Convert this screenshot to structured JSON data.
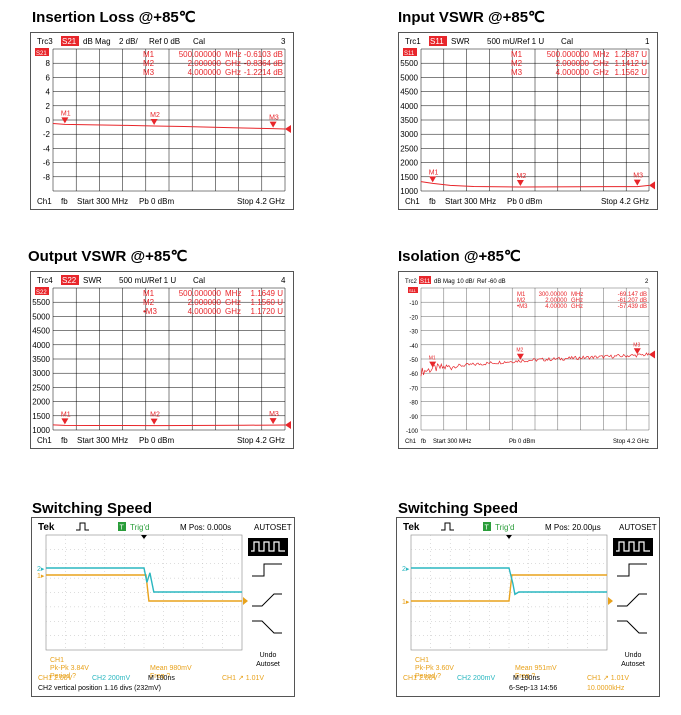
{
  "titles": {
    "il": "Insertion Loss @+85℃",
    "in_vswr": "Input VSWR @+85℃",
    "out_vswr": "Output VSWR @+85℃",
    "iso": "Isolation @+85℃",
    "sw1": "Switching Speed",
    "sw2": "Switching Speed"
  },
  "colors": {
    "trace": "#e8262b",
    "header_red": "#e8262b",
    "ch1": "#e8a21c",
    "ch2": "#2ab7c0",
    "grid": "#000000"
  },
  "chart_data": [
    {
      "type": "line",
      "header": {
        "trc": "Trc3",
        "param": "S21",
        "fmt": "dB Mag",
        "scale": "2 dB/",
        "ref": "Ref 0 dB",
        "cal": "Cal",
        "num": "3"
      },
      "markers": [
        {
          "label": "M1",
          "freq": "500.000000",
          "unit": "MHz",
          "value": "-0.6103 dB"
        },
        {
          "label": "M2",
          "freq": "2.000000",
          "unit": "GHz",
          "value": "-0.8364 dB"
        },
        {
          "label": "M3",
          "freq": "4.000000",
          "unit": "GHz",
          "value": "-1.2214 dB"
        }
      ],
      "ylim": [
        -10,
        10
      ],
      "ytick_labels": [
        "8",
        "6",
        "4",
        "2",
        "0",
        "-2",
        "-4",
        "-6",
        "-8"
      ],
      "ref_level": "S21",
      "x": [
        0.3,
        0.5,
        1.0,
        1.5,
        2.0,
        2.5,
        3.0,
        3.5,
        4.0,
        4.2
      ],
      "y": [
        -0.5,
        -0.61,
        -0.68,
        -0.75,
        -0.84,
        -0.92,
        -1.02,
        -1.12,
        -1.22,
        -1.26
      ],
      "footer": {
        "ch": "Ch1",
        "fb": "fb",
        "start": "Start  300 MHz",
        "pb": "Pb    0 dBm",
        "stop": "Stop  4.2 GHz"
      }
    },
    {
      "type": "line",
      "header": {
        "trc": "Trc1",
        "param": "S11",
        "fmt": "SWR",
        "scale": "500 mU/",
        "ref": "Ref 1 U",
        "cal": "Cal",
        "num": "1"
      },
      "markers": [
        {
          "label": "M1",
          "freq": "500.000000",
          "unit": "MHz",
          "value": "1.2687 U"
        },
        {
          "label": "M2",
          "freq": "2.000000",
          "unit": "GHz",
          "value": "1.1412 U"
        },
        {
          "label": "M3",
          "freq": "4.000000",
          "unit": "GHz",
          "value": "1.1562 U"
        }
      ],
      "ylim": [
        1000,
        6000
      ],
      "ytick_labels": [
        "5500",
        "5000",
        "4500",
        "4000",
        "3500",
        "3000",
        "2500",
        "2000",
        "1500",
        "1000"
      ],
      "ref_level": "S11",
      "x": [
        0.3,
        0.4,
        0.5,
        0.8,
        1.2,
        1.6,
        2.0,
        2.5,
        3.0,
        3.5,
        4.0,
        4.2
      ],
      "y": [
        1330,
        1300,
        1269,
        1200,
        1160,
        1150,
        1141,
        1145,
        1150,
        1152,
        1156,
        1200
      ],
      "footer": {
        "ch": "Ch1",
        "fb": "fb",
        "start": "Start  300 MHz",
        "pb": "Pb    0 dBm",
        "stop": "Stop  4.2 GHz"
      }
    },
    {
      "type": "line",
      "header": {
        "trc": "Trc4",
        "param": "S22",
        "fmt": "SWR",
        "scale": "500 mU/",
        "ref": "Ref 1 U",
        "cal": "Cal",
        "num": "4"
      },
      "markers": [
        {
          "label": "M1",
          "freq": "500.000000",
          "unit": "MHz",
          "value": "1.1649 U"
        },
        {
          "label": "M2",
          "freq": "2.000000",
          "unit": "GHz",
          "value": "1.1560 U"
        },
        {
          "label": "•M3",
          "freq": "4.000000",
          "unit": "GHz",
          "value": "1.1720 U"
        }
      ],
      "ylim": [
        1000,
        6000
      ],
      "ytick_labels": [
        "5500",
        "5000",
        "4500",
        "4000",
        "3500",
        "3000",
        "2500",
        "2000",
        "1500",
        "1000"
      ],
      "ref_level": "S22",
      "x": [
        0.3,
        0.5,
        1.0,
        1.5,
        2.0,
        2.5,
        3.0,
        3.5,
        4.0,
        4.2
      ],
      "y": [
        1180,
        1165,
        1160,
        1158,
        1156,
        1160,
        1165,
        1168,
        1172,
        1175
      ],
      "footer": {
        "ch": "Ch1",
        "fb": "fb",
        "start": "Start  300 MHz",
        "pb": "Pb    0 dBm",
        "stop": "Stop  4.2 GHz"
      }
    },
    {
      "type": "line",
      "header": {
        "trc": "Trc2",
        "param": "S11",
        "fmt": "dB Mag",
        "scale": "10 dB/",
        "ref": "Ref -60 dB",
        "cal": "",
        "num": "2"
      },
      "markers": [
        {
          "label": "M1",
          "freq": "300.00000",
          "unit": "MHz",
          "value": "-69.147  dB"
        },
        {
          "label": "M2",
          "freq": "2.00000",
          "unit": "GHz",
          "value": "-61.207  dB"
        },
        {
          "label": "•M3",
          "freq": "4.00000",
          "unit": "GHz",
          "value": "-57.439  dB"
        }
      ],
      "ylim": [
        -110,
        -10
      ],
      "ytick_labels": [
        "-10",
        "-20",
        "-30",
        "-40",
        "-50",
        "-60",
        "-70",
        "-80",
        "-90",
        "-100"
      ],
      "ref_level": "S11",
      "x": [
        0.3,
        0.5,
        1.0,
        1.5,
        2.0,
        2.5,
        3.0,
        3.5,
        4.0,
        4.2
      ],
      "y": [
        -69.1,
        -66.8,
        -64.6,
        -62.8,
        -61.2,
        -60.2,
        -59.2,
        -58.3,
        -57.4,
        -56.8
      ],
      "footer": {
        "ch": "Ch1",
        "fb": "fb",
        "start": "Start  300 MHz",
        "pb": "Pb    0 dBm",
        "stop": "Stop  4.2 GHz"
      }
    },
    {
      "type": "line",
      "scope": true,
      "brand": "Tek",
      "trig": "Trig'd",
      "mpos": "M Pos: 0.000s",
      "autoset": "AUTOSET",
      "ch1_marker": "1",
      "ch2_marker": "2",
      "readout": {
        "ch1": "CH1",
        "pk": "Pk-Pk 3.84V",
        "period": "Period ?",
        "mean": "Mean 980mV",
        "freq": "Freq ?",
        "undo": "Undo",
        "undo2": "Autoset"
      },
      "footer": {
        "ch1": "CH1  2.00V",
        "ch2": "CH2  200mV",
        "time": "M 100ns",
        "trig": "CH1  ↗  1.01V"
      },
      "note": "CH2 vertical position 1.16 divs (232mV)",
      "ch1_steps": [
        [
          0,
          1
        ],
        [
          5.1,
          1
        ],
        [
          5.25,
          -1
        ],
        [
          10,
          -1
        ]
      ],
      "ch2_steps": [
        [
          0,
          1
        ],
        [
          5.0,
          1
        ],
        [
          5.15,
          -0.2
        ],
        [
          5.3,
          0.6
        ],
        [
          5.5,
          -1
        ],
        [
          10,
          -1
        ]
      ]
    },
    {
      "type": "line",
      "scope": true,
      "brand": "Tek",
      "trig": "Trig'd",
      "mpos": "M Pos: 20.00µs",
      "autoset": "AUTOSET",
      "ch1_marker": "1",
      "ch2_marker": "2",
      "readout": {
        "ch1": "CH1",
        "pk": "Pk-Pk 3.60V",
        "period": "Period ?",
        "mean": "Mean 951mV",
        "freq": "Freq ?",
        "undo": "Undo",
        "undo2": "Autoset"
      },
      "footer": {
        "ch1": "CH1  2.00V",
        "ch2": "CH2  200mV",
        "time": "M 100ns",
        "trig": "CH1  ↗  1.01V"
      },
      "date": "6-Sep-13  14:56",
      "freqbox": "10.0000kHz",
      "ch1_steps": [
        [
          0,
          -1
        ],
        [
          5.0,
          -1
        ],
        [
          5.15,
          1
        ],
        [
          10,
          1
        ]
      ],
      "ch2_steps": [
        [
          0,
          1
        ],
        [
          5.0,
          1
        ],
        [
          5.2,
          -0.3
        ],
        [
          5.3,
          -1.2
        ],
        [
          5.5,
          -1
        ],
        [
          10,
          -1
        ]
      ]
    }
  ]
}
